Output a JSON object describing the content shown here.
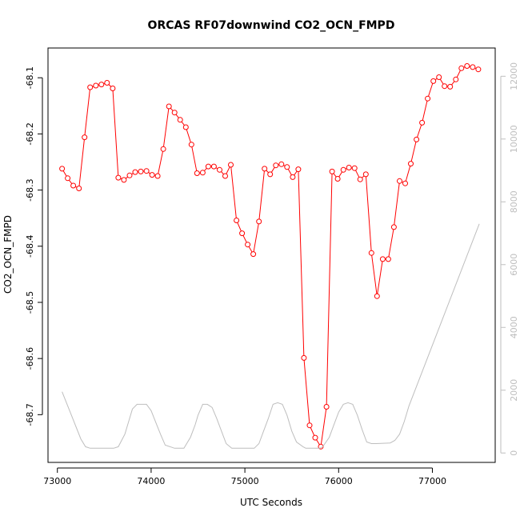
{
  "chart_data": {
    "type": "line",
    "title": "ORCAS RF07downwind CO2_OCN_FMPD",
    "xlabel": "UTC Seconds",
    "ylabel": "CO2_OCN_FMPD",
    "xlim": [
      72900,
      77670
    ],
    "ylim": [
      -68.785,
      -68.047
    ],
    "y2lim": [
      -300,
      12900
    ],
    "x_ticks": [
      73000,
      74000,
      75000,
      76000,
      77000
    ],
    "y_ticks": [
      -68.1,
      -68.2,
      -68.3,
      -68.4,
      -68.5,
      -68.6,
      -68.7
    ],
    "y2_ticks": [
      0,
      2000,
      4000,
      6000,
      8000,
      10000,
      12000
    ],
    "colors": {
      "primary": "#ff0000",
      "secondary": "#bebebe"
    },
    "series": [
      {
        "axis": "left",
        "style": "line-with-circles",
        "color": "#ff0000",
        "x": [
          73050,
          73110,
          73170,
          73230,
          73290,
          73350,
          73410,
          73470,
          73530,
          73590,
          73650,
          73710,
          73770,
          73830,
          73890,
          73950,
          74010,
          74070,
          74130,
          74190,
          74250,
          74310,
          74370,
          74430,
          74490,
          74550,
          74610,
          74670,
          74730,
          74790,
          74850,
          74910,
          74970,
          75030,
          75090,
          75150,
          75210,
          75270,
          75330,
          75390,
          75450,
          75510,
          75570,
          75630,
          75690,
          75750,
          75810,
          75870,
          75930,
          75990,
          76050,
          76110,
          76170,
          76230,
          76290,
          76350,
          76410,
          76470,
          76530,
          76590,
          76650,
          76710,
          76770,
          76830,
          76890,
          76950,
          77010,
          77070,
          77130,
          77190,
          77250,
          77310,
          77370,
          77430,
          77490
        ],
        "values": [
          -68.262,
          -68.279,
          -68.292,
          -68.297,
          -68.206,
          -68.117,
          -68.114,
          -68.112,
          -68.109,
          -68.119,
          -68.278,
          -68.282,
          -68.274,
          -68.268,
          -68.267,
          -68.266,
          -68.273,
          -68.275,
          -68.227,
          -68.151,
          -68.162,
          -68.175,
          -68.188,
          -68.219,
          -68.27,
          -68.269,
          -68.258,
          -68.258,
          -68.264,
          -68.275,
          -68.255,
          -68.354,
          -68.377,
          -68.397,
          -68.414,
          -68.356,
          -68.262,
          -68.272,
          -68.256,
          -68.254,
          -68.259,
          -68.277,
          -68.263,
          -68.599,
          -68.719,
          -68.741,
          -68.757,
          -68.686,
          -68.267,
          -68.28,
          -68.264,
          -68.26,
          -68.261,
          -68.281,
          -68.272,
          -68.412,
          -68.489,
          -68.423,
          -68.423,
          -68.366,
          -68.284,
          -68.288,
          -68.253,
          -68.21,
          -68.18,
          -68.137,
          -68.106,
          -68.099,
          -68.115,
          -68.116,
          -68.103,
          -68.083,
          -68.079,
          -68.081,
          -68.085
        ]
      },
      {
        "axis": "right",
        "style": "line",
        "color": "#bebebe",
        "x": [
          73050,
          73150,
          73250,
          73300,
          73350,
          73450,
          73600,
          73650,
          73720,
          73760,
          73800,
          73850,
          73950,
          74000,
          74060,
          74100,
          74150,
          74250,
          74300,
          74350,
          74420,
          74470,
          74500,
          74550,
          74600,
          74650,
          74700,
          74750,
          74800,
          74860,
          74900,
          74950,
          75100,
          75150,
          75200,
          75250,
          75300,
          75350,
          75400,
          75450,
          75500,
          75550,
          75620,
          75650,
          75800,
          75830,
          75900,
          75950,
          76000,
          76050,
          76100,
          76150,
          76200,
          76250,
          76300,
          76350,
          76400,
          76550,
          76600,
          76650,
          76700,
          76750,
          77500
        ],
        "values": [
          1950,
          1200,
          450,
          200,
          150,
          150,
          150,
          200,
          600,
          1000,
          1400,
          1550,
          1550,
          1350,
          900,
          600,
          250,
          150,
          150,
          150,
          500,
          900,
          1200,
          1550,
          1550,
          1450,
          1100,
          700,
          300,
          150,
          150,
          150,
          150,
          300,
          700,
          1100,
          1550,
          1600,
          1550,
          1200,
          700,
          350,
          200,
          150,
          150,
          200,
          500,
          900,
          1300,
          1550,
          1600,
          1550,
          1200,
          750,
          350,
          300,
          300,
          320,
          400,
          600,
          1000,
          1500,
          7300
        ]
      }
    ]
  }
}
